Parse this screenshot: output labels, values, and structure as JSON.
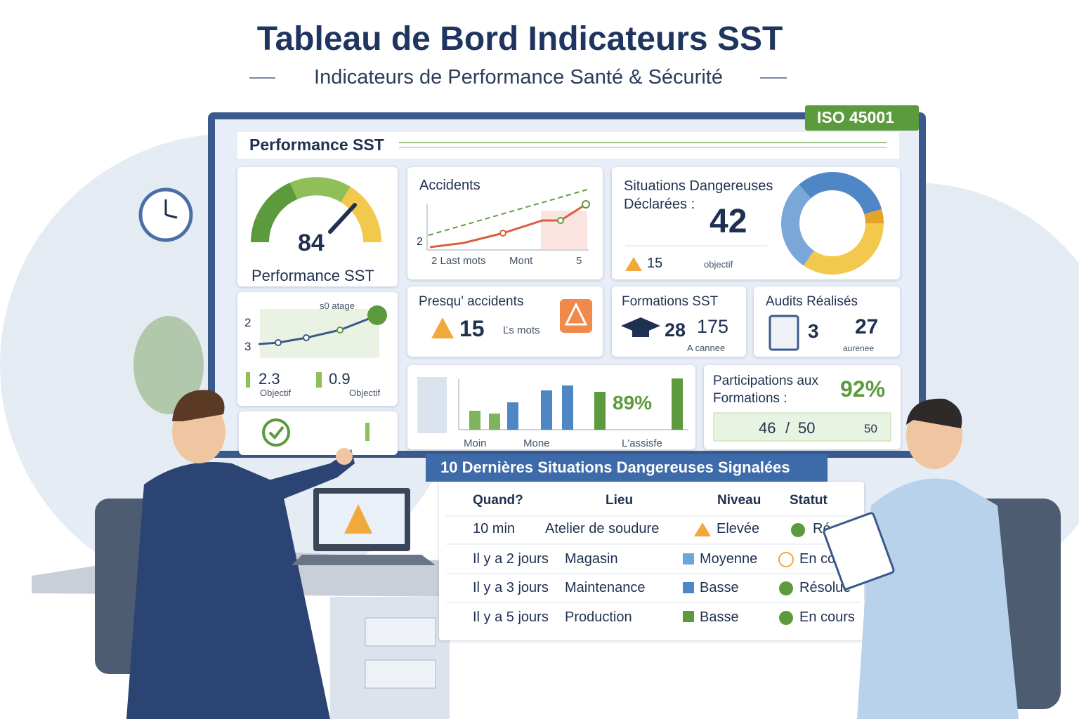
{
  "header": {
    "title": "Tableau de Bord Indicateurs SST",
    "subtitle": "Indicateurs de Performance Santé & Sécurité"
  },
  "badge": "ISO 45001",
  "panel_title": "Performance SST",
  "gauge": {
    "value": 84,
    "label": "Performance SST"
  },
  "trend_card": {
    "legend": "s0 atage",
    "y_labels": [
      2,
      3
    ],
    "stats": [
      {
        "value": 2.3,
        "label": "Objectif"
      },
      {
        "value": 0.9,
        "label": "Objectif"
      }
    ]
  },
  "accidents": {
    "title": "Accidents",
    "y_label": 2,
    "x_labels": [
      "2 Last mots",
      "Mont",
      "5"
    ]
  },
  "situations": {
    "title": "Situations Dangereuses Déclarées :",
    "value": 42,
    "warning": 15,
    "target": "objectif"
  },
  "near_miss": {
    "title": "Presqu' accidents",
    "value": 15,
    "note": "Ľs mots"
  },
  "training": {
    "title": "Formations SST",
    "value": 28,
    "count": 175,
    "note": "A cannee"
  },
  "audits": {
    "title": "Audits Réalisés",
    "value": 3,
    "count": 27,
    "note": "aurenee"
  },
  "bars_card": {
    "percent": "89%",
    "x_labels": [
      "Moin",
      "Mone",
      "L'assisfe"
    ]
  },
  "participation": {
    "title": "Participations aux Formations :",
    "percent": "92%",
    "done": 46,
    "separator": "/",
    "total": 50,
    "target": 50
  },
  "table": {
    "title": "10 Dernières Situations Dangereuses Signalées",
    "columns": [
      "Quand?",
      "Lieu",
      "Niveau",
      "Statut"
    ],
    "rows": [
      [
        "10 min",
        "Atelier de soudure",
        "Elevée",
        "Ré"
      ],
      [
        "Il y a 2 jours",
        "Magasin",
        "Moyenne",
        "En cour"
      ],
      [
        "Il y a 3 jours",
        "Maintenance",
        "Basse",
        "Résolue"
      ],
      [
        "Il y a 5 jours",
        "Production",
        "Basse",
        "En cours"
      ]
    ]
  }
}
